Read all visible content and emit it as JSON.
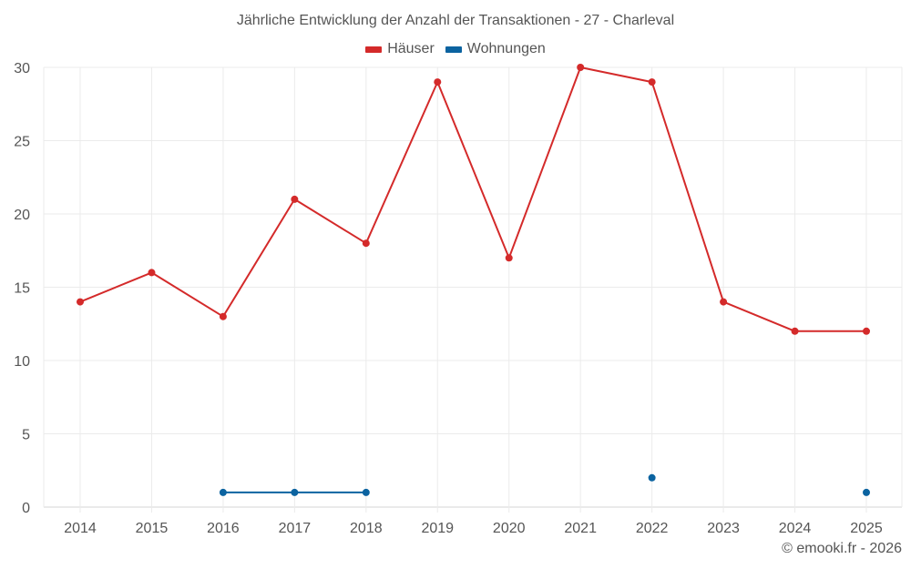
{
  "chart_data": {
    "type": "line",
    "title": "Jährliche Entwicklung der Anzahl der Transaktionen - 27 - Charleval",
    "xlabel": "",
    "ylabel": "",
    "categories": [
      "2014",
      "2015",
      "2016",
      "2017",
      "2018",
      "2019",
      "2020",
      "2021",
      "2022",
      "2023",
      "2024",
      "2025"
    ],
    "ylim": [
      0,
      30
    ],
    "yticks": [
      0,
      5,
      10,
      15,
      20,
      25,
      30
    ],
    "grid": true,
    "legend_position": "top",
    "series": [
      {
        "name": "Häuser",
        "color": "#d42a2a",
        "values": [
          14,
          16,
          13,
          21,
          18,
          29,
          17,
          30,
          29,
          14,
          12,
          12
        ]
      },
      {
        "name": "Wohnungen",
        "color": "#0b63a0",
        "values": [
          null,
          null,
          1,
          1,
          1,
          null,
          null,
          null,
          2,
          null,
          null,
          1
        ]
      }
    ]
  },
  "header": {
    "title": "Jährliche Entwicklung der Anzahl der Transaktionen - 27 - Charleval"
  },
  "legend": [
    {
      "label": "Häuser",
      "color": "#d42a2a"
    },
    {
      "label": "Wohnungen",
      "color": "#0b63a0"
    }
  ],
  "footer": {
    "credit": "© emooki.fr - 2026"
  }
}
